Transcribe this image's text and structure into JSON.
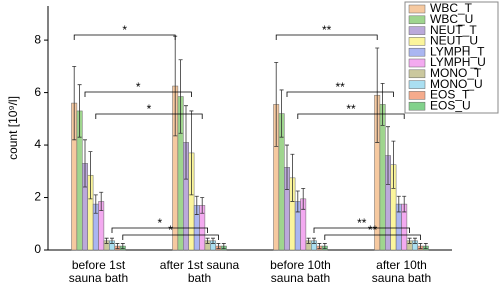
{
  "chart_data": {
    "type": "bar",
    "y_label": "count [10⁹/l]",
    "categories": [
      "before 1st sauna bath",
      "after 1st sauna bath",
      "before 10th sauna bath",
      "after 10th sauna bath"
    ],
    "ylim": [
      0,
      9.3
    ],
    "yticks": [
      0,
      2,
      4,
      6,
      8
    ],
    "legend": "upper right",
    "series": [
      {
        "name": "WBC_T",
        "color": "#f6c9a0",
        "values": [
          5.6,
          6.25,
          5.55,
          5.9
        ],
        "errors": [
          1.4,
          1.9,
          1.6,
          1.8
        ]
      },
      {
        "name": "WBC_U",
        "color": "#9fd58e",
        "values": [
          5.3,
          5.85,
          5.2,
          5.55
        ],
        "errors": [
          1.0,
          1.4,
          0.9,
          0.8
        ]
      },
      {
        "name": "NEUT_T",
        "color": "#bba9da",
        "values": [
          3.3,
          4.1,
          3.15,
          3.6
        ],
        "errors": [
          0.9,
          1.4,
          0.85,
          1.1
        ]
      },
      {
        "name": "NEUT_U",
        "color": "#fbf59c",
        "values": [
          2.85,
          3.7,
          2.75,
          3.25
        ],
        "errors": [
          0.9,
          1.6,
          0.9,
          0.9
        ]
      },
      {
        "name": "LYMPH_T",
        "color": "#aab6f1",
        "values": [
          1.75,
          1.7,
          1.85,
          1.75
        ],
        "errors": [
          0.35,
          0.35,
          0.4,
          0.3
        ]
      },
      {
        "name": "LYMPH_U",
        "color": "#f3aaf0",
        "values": [
          1.85,
          1.7,
          1.95,
          1.75
        ],
        "errors": [
          0.35,
          0.3,
          0.4,
          0.3
        ]
      },
      {
        "name": "MONO_T",
        "color": "#cbc89e",
        "values": [
          0.35,
          0.35,
          0.35,
          0.35
        ],
        "errors": [
          0.1,
          0.1,
          0.1,
          0.1
        ]
      },
      {
        "name": "MONO_U",
        "color": "#aadff1",
        "values": [
          0.35,
          0.35,
          0.35,
          0.35
        ],
        "errors": [
          0.1,
          0.1,
          0.1,
          0.1
        ]
      },
      {
        "name": "EOS_T",
        "color": "#f5ab8c",
        "values": [
          0.15,
          0.15,
          0.15,
          0.15
        ],
        "errors": [
          0.1,
          0.1,
          0.1,
          0.1
        ]
      },
      {
        "name": "EOS_U",
        "color": "#82d28c",
        "values": [
          0.15,
          0.15,
          0.15,
          0.15
        ],
        "errors": [
          0.1,
          0.1,
          0.1,
          0.1
        ]
      }
    ],
    "annotations": [
      "*",
      "*",
      "*",
      "*",
      "*",
      "**",
      "**",
      "**",
      "**",
      "**"
    ]
  }
}
